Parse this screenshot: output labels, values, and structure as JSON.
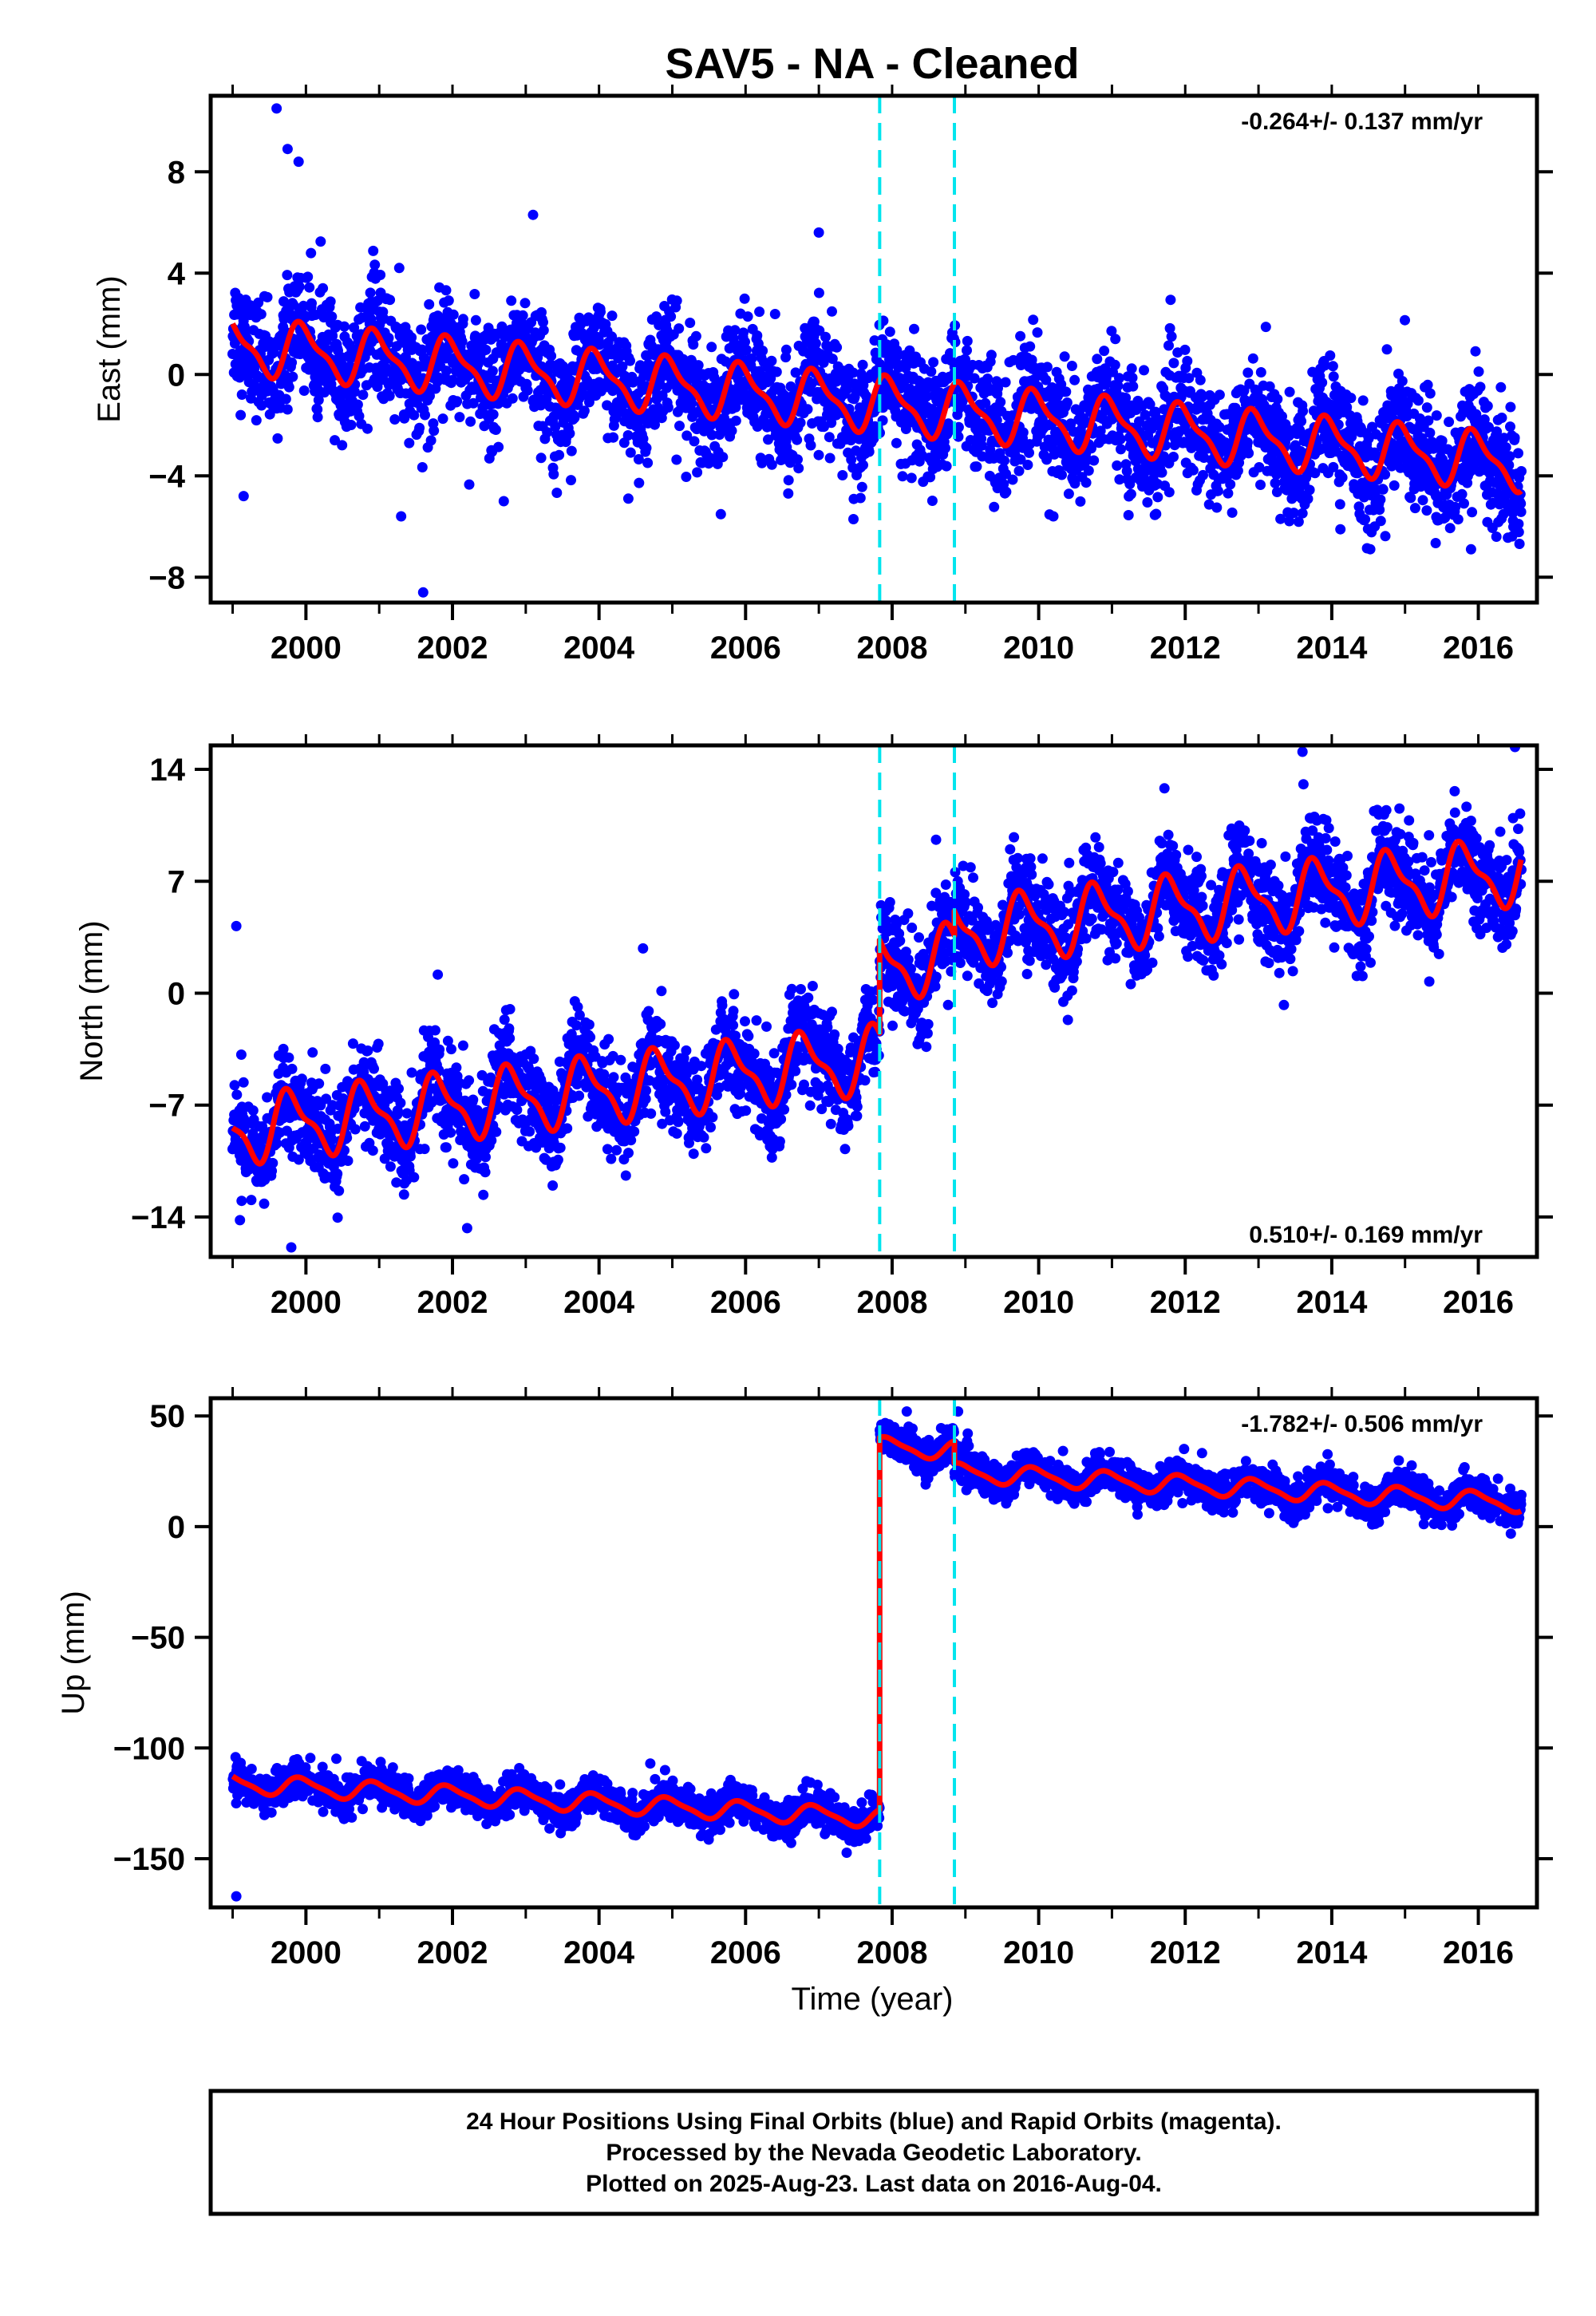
{
  "title": "SAV5  - NA - Cleaned",
  "xlabel": "Time (year)",
  "footer": [
    "24 Hour Positions Using Final Orbits (blue) and Rapid Orbits (magenta).",
    "Processed by the Nevada Geodetic Laboratory.",
    "Plotted on 2025-Aug-23. Last data on 2016-Aug-04."
  ],
  "colors": {
    "points": "#0000ff",
    "model": "#ff0000",
    "events": "#00e5ee",
    "frame": "#000000"
  },
  "chart_data": [
    {
      "type": "scatter",
      "ylabel": "East (mm)",
      "rate_text": "-0.264+/- 0.137 mm/yr",
      "rate_position": "top-right",
      "xlim": [
        1998.7,
        2016.8
      ],
      "ylim": [
        -9.0,
        11.0
      ],
      "x_ticks": [
        2000,
        2002,
        2004,
        2006,
        2008,
        2010,
        2012,
        2014,
        2016
      ],
      "y_ticks": [
        -8,
        -4,
        0,
        4,
        8
      ],
      "y_tick_labels": [
        "−8",
        "−4",
        "0",
        "4",
        "8"
      ],
      "event_lines": [
        2007.83,
        2008.85
      ],
      "model": {
        "rate_mm_yr": -0.264,
        "intercept_mm": 1.15,
        "ref_year": 1999.0,
        "annual_amp_mm": 1.0,
        "annual_phase_year": 0.72,
        "semiannual_amp_mm": 0.35,
        "offsets": []
      },
      "scatter": {
        "noise_mm": 1.15,
        "daily_points": true
      },
      "outliers": [
        [
          1999.15,
          -4.8
        ],
        [
          1999.6,
          10.5
        ],
        [
          1999.75,
          8.9
        ],
        [
          1999.9,
          8.4
        ],
        [
          2001.3,
          -5.6
        ],
        [
          2001.6,
          -8.6
        ],
        [
          2002.7,
          -5.0
        ],
        [
          2003.1,
          6.3
        ],
        [
          2004.4,
          -4.9
        ],
        [
          2007.0,
          5.6
        ],
        [
          2010.2,
          -5.6
        ],
        [
          2013.3,
          -5.7
        ],
        [
          2015.9,
          -6.9
        ]
      ],
      "x_range": [
        1999.0,
        2016.59
      ]
    },
    {
      "type": "scatter",
      "ylabel": "North (mm)",
      "rate_text": "0.510+/- 0.169 mm/yr",
      "rate_position": "bottom-right",
      "xlim": [
        1998.7,
        2016.8
      ],
      "ylim": [
        -16.5,
        15.5
      ],
      "x_ticks": [
        2000,
        2002,
        2004,
        2006,
        2008,
        2010,
        2012,
        2014,
        2016
      ],
      "y_ticks": [
        -14,
        -7,
        0,
        7,
        14
      ],
      "y_tick_labels": [
        "−14",
        "−7",
        "0",
        "7",
        "14"
      ],
      "event_lines": [
        2007.83,
        2008.85
      ],
      "model": {
        "rate_mm_yr": 0.51,
        "intercept_mm": -8.6,
        "ref_year": 1999.0,
        "annual_amp_mm": 1.9,
        "annual_phase_year": 0.55,
        "semiannual_amp_mm": 0.7,
        "offsets": [
          [
            2007.83,
            5.8
          ],
          [
            2008.85,
            1.5
          ]
        ]
      },
      "scatter": {
        "noise_mm": 1.5,
        "daily_points": true
      },
      "outliers": [
        [
          1999.05,
          4.2
        ],
        [
          1999.1,
          -14.2
        ],
        [
          1999.8,
          -15.9
        ],
        [
          2002.2,
          -14.7
        ],
        [
          2004.6,
          2.8
        ],
        [
          2008.6,
          9.6
        ],
        [
          2013.6,
          15.1
        ],
        [
          2016.5,
          15.4
        ]
      ],
      "x_range": [
        1999.0,
        2016.59
      ]
    },
    {
      "type": "scatter",
      "ylabel": "Up (mm)",
      "rate_text": "-1.782+/- 0.506 mm/yr",
      "rate_position": "top-right",
      "xlim": [
        1998.7,
        2016.8
      ],
      "ylim": [
        -172,
        58
      ],
      "x_ticks": [
        2000,
        2002,
        2004,
        2006,
        2008,
        2010,
        2012,
        2014,
        2016
      ],
      "y_ticks": [
        -150,
        -100,
        -50,
        0,
        50
      ],
      "y_tick_labels": [
        "−150",
        "−100",
        "−50",
        "0",
        "50"
      ],
      "event_lines": [
        2007.83,
        2008.85
      ],
      "model": {
        "rate_mm_yr": -1.782,
        "intercept_mm": -116.0,
        "ref_year": 1999.0,
        "annual_amp_mm": 4.0,
        "annual_phase_year": 0.7,
        "semiannual_amp_mm": 1.0,
        "offsets": [
          [
            2007.83,
            168.0
          ],
          [
            2008.85,
            -10.0
          ]
        ]
      },
      "scatter": {
        "noise_mm": 4.0,
        "daily_points": true
      },
      "outliers": [
        [
          1999.05,
          -167
        ],
        [
          1999.7,
          -110
        ],
        [
          2004.7,
          -107
        ],
        [
          2008.2,
          52
        ],
        [
          2008.9,
          52
        ]
      ],
      "x_range": [
        1999.0,
        2016.59
      ]
    }
  ]
}
